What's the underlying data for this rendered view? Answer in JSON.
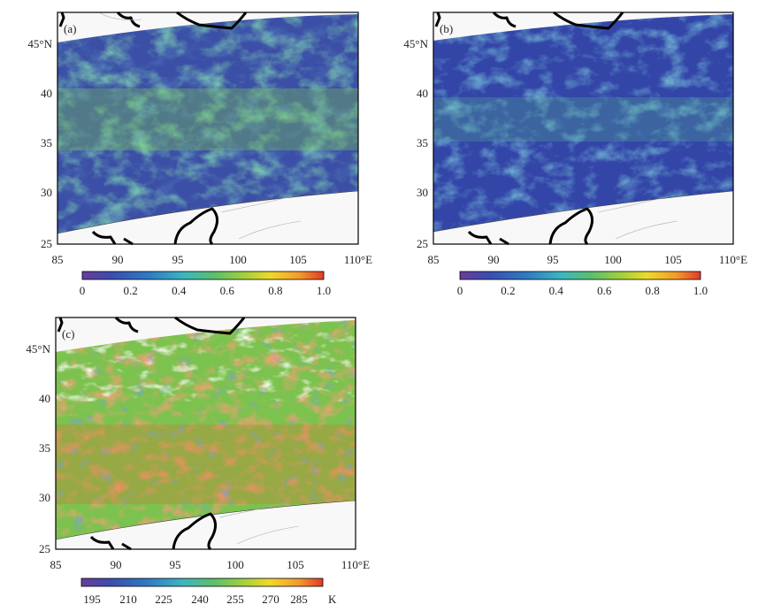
{
  "panels": [
    {
      "label": "(a)",
      "x_ticks": [
        "85",
        "90",
        "95",
        "100",
        "105",
        "110°E"
      ],
      "y_ticks": [
        "45°N",
        "40",
        "35",
        "30",
        "25"
      ],
      "colorbar": {
        "ticks": [
          "0",
          "0.2",
          "0.4",
          "0.6",
          "0.8",
          "1.0"
        ],
        "range": [
          0,
          1
        ],
        "unit": ""
      }
    },
    {
      "label": "(b)",
      "x_ticks": [
        "85",
        "90",
        "95",
        "100",
        "105",
        "110°E"
      ],
      "y_ticks": [
        "45°N",
        "40",
        "35",
        "30",
        "25"
      ],
      "colorbar": {
        "ticks": [
          "0",
          "0.2",
          "0.4",
          "0.6",
          "0.8",
          "1.0"
        ],
        "range": [
          0,
          1
        ],
        "unit": ""
      }
    },
    {
      "label": "(c)",
      "x_ticks": [
        "85",
        "90",
        "95",
        "100",
        "105",
        "110°E"
      ],
      "y_ticks": [
        "45°N",
        "40",
        "35",
        "30",
        "25"
      ],
      "colorbar": {
        "ticks": [
          "195",
          "210",
          "225",
          "240",
          "255",
          "270",
          "285"
        ],
        "range": [
          187,
          297
        ],
        "unit": "K"
      }
    }
  ],
  "map_extent": {
    "lon": [
      85,
      110
    ],
    "lat": [
      25,
      48
    ]
  },
  "colors": {
    "palette": [
      "#5b3c8e",
      "#3a4db0",
      "#2f7cc4",
      "#3cb6c0",
      "#5cc06a",
      "#a8d23a",
      "#f0d92a",
      "#f39a2b",
      "#e23a2a"
    ],
    "coastline": "#000000",
    "missing": "#f7f7f7"
  }
}
